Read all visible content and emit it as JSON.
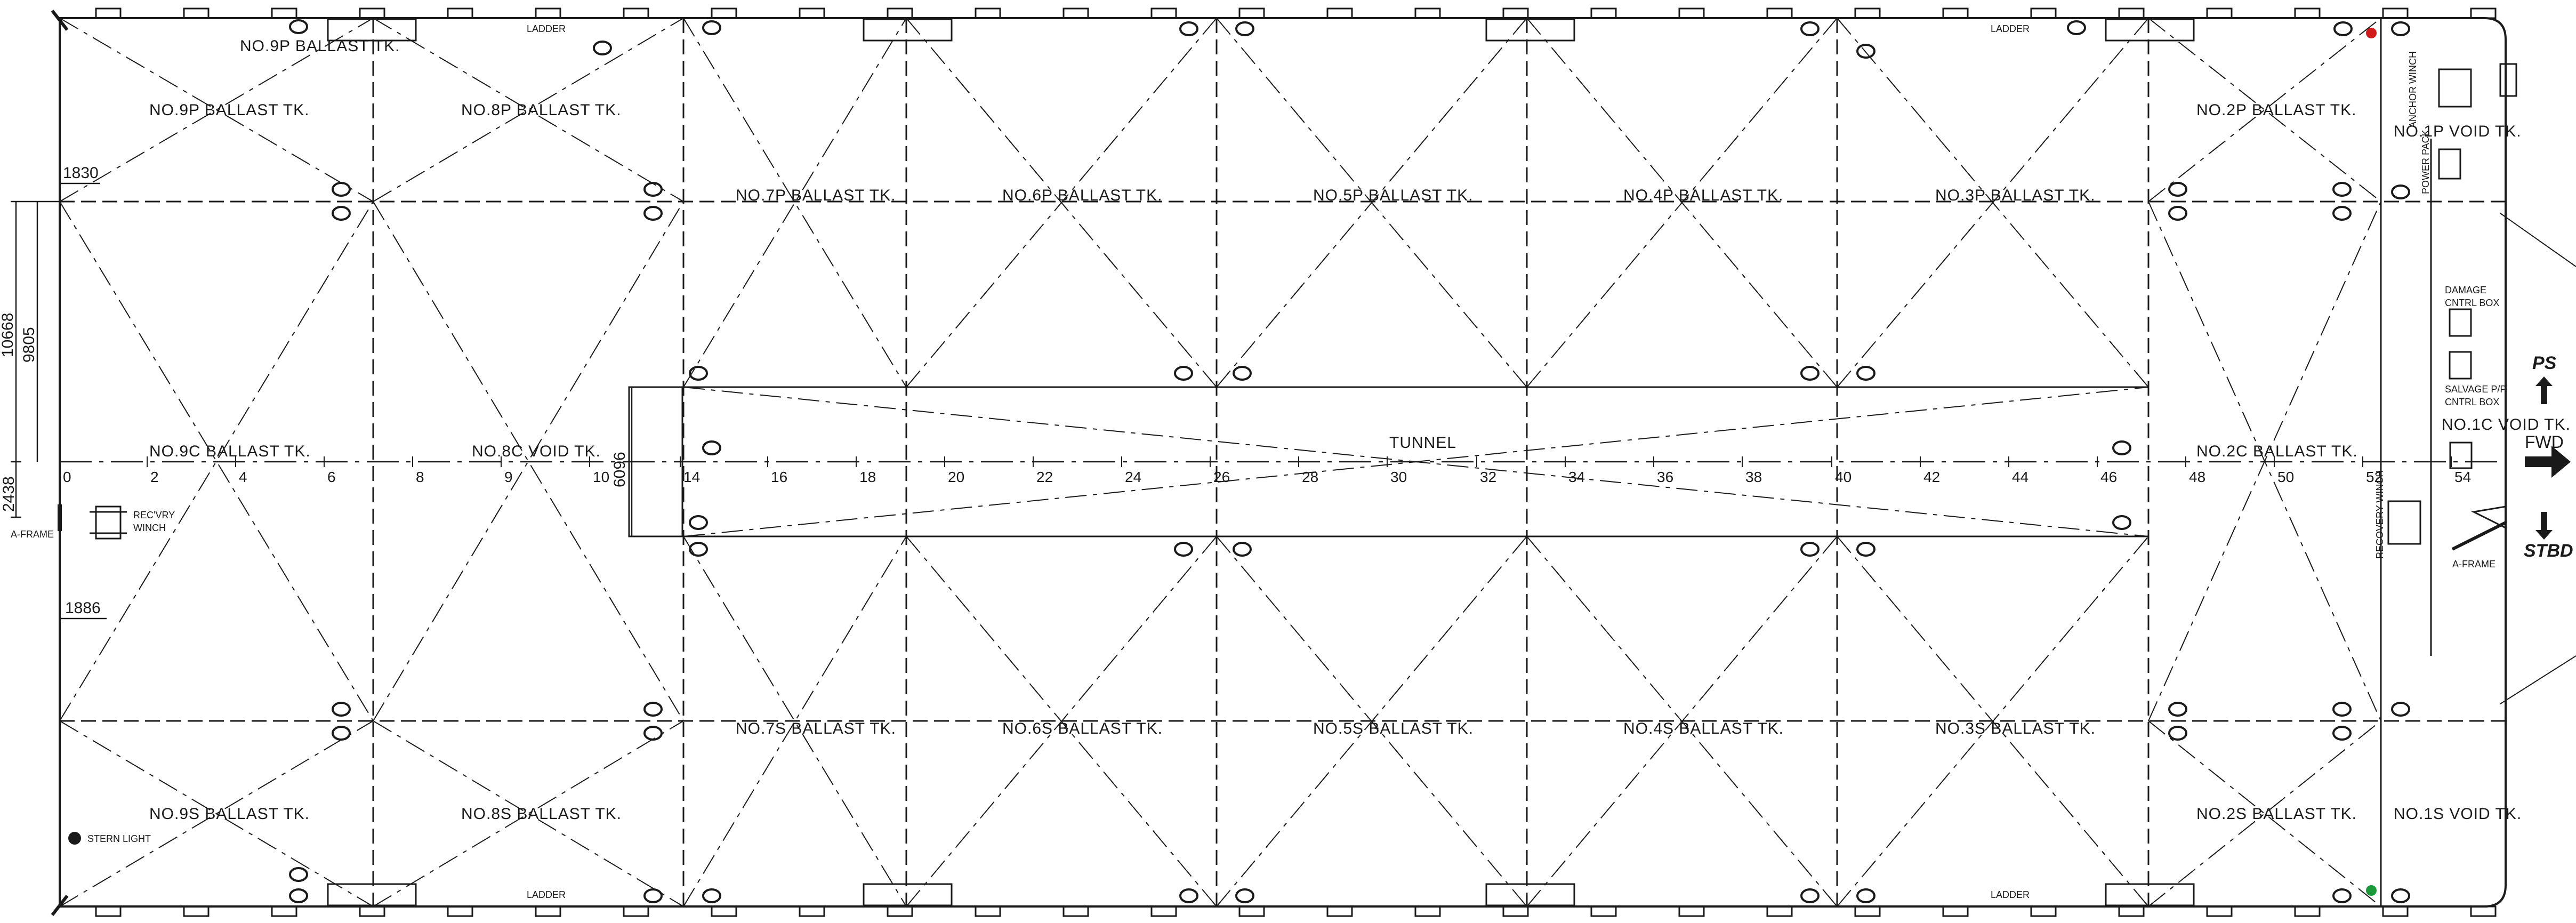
{
  "tanks": {
    "p9a": "NO.9P BALLAST TK.",
    "p9": "NO.9P BALLAST TK.",
    "p8": "NO.8P BALLAST TK.",
    "p7": "NO.7P BALLAST TK.",
    "p6": "NO.6P BALLAST TK.",
    "p5": "NO.5P BALLAST TK.",
    "p4": "NO.4P BALLAST TK.",
    "p3": "NO.3P BALLAST TK.",
    "p2": "NO.2P BALLAST TK.",
    "p1": "NO.1P VOID TK.",
    "c9": "NO.9C BALLAST TK.",
    "c8": "NO.8C VOID TK.",
    "c2": "NO.2C BALLAST TK.",
    "c1": "NO.1C VOID TK.",
    "s9": "NO.9S BALLAST TK.",
    "s8": "NO.8S BALLAST TK.",
    "s7": "NO.7S BALLAST TK.",
    "s6": "NO.6S BALLAST TK.",
    "s5": "NO.5S BALLAST TK.",
    "s4": "NO.4S BALLAST TK.",
    "s3": "NO.3S BALLAST TK.",
    "s2": "NO.2S BALLAST TK.",
    "s1": "NO.1S VOID TK.",
    "tunnel": "TUNNEL"
  },
  "frames": [
    "0",
    "2",
    "4",
    "6",
    "8",
    "9",
    "10",
    "14",
    "16",
    "18",
    "20",
    "22",
    "24",
    "26",
    "28",
    "30",
    "32",
    "34",
    "36",
    "38",
    "40",
    "42",
    "44",
    "46",
    "48",
    "50",
    "52",
    "54"
  ],
  "dimensions": {
    "d1830": "1830",
    "d1886": "1886",
    "d10668": "10668",
    "d9805": "9805",
    "d2438": "2438",
    "d6096": "6096"
  },
  "equipment": {
    "ladder_top_left": "LADDER",
    "ladder_top_right": "LADDER",
    "ladder_bottom_left": "LADDER",
    "ladder_bottom_right": "LADDER",
    "a_frame_aft": "A-FRAME",
    "recovery_winch_aft_1": "REC'VRY",
    "recovery_winch_aft_2": "WINCH",
    "stern_light": "STERN LIGHT",
    "anchor_winch": "ANCHOR WINCH",
    "power_pack": "POWER PACK",
    "damage_box_1": "DAMAGE",
    "damage_box_2": "CNTRL BOX",
    "salvage_box_1": "SALVAGE P/P",
    "salvage_box_2": "CNTRL BOX",
    "recovery_winch_fwd": "RECOVERY WINCH",
    "a_frame_fwd": "A-FRAME"
  },
  "directions": {
    "ps": "PS",
    "fwd": "FWD",
    "stbd": "STBD"
  },
  "colors": {
    "line": "#1a1a1a",
    "background": "#ffffff",
    "signal_red": "#d11a1a",
    "signal_green": "#1a9a3a"
  }
}
